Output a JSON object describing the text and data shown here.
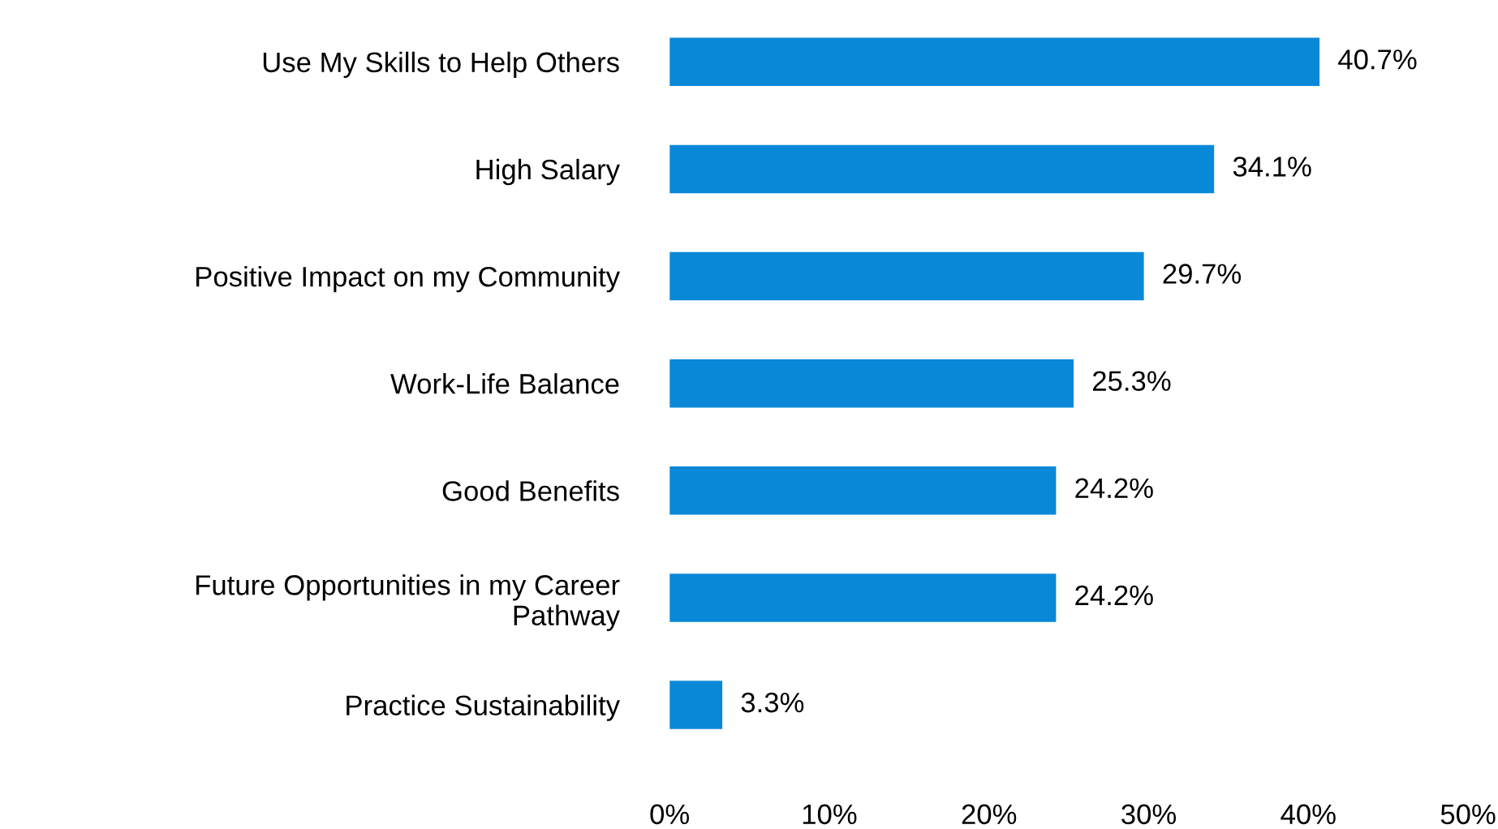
{
  "chart_data": {
    "type": "bar",
    "orientation": "horizontal",
    "categories": [
      "Use My Skills to Help Others",
      "High Salary",
      "Positive Impact on my Community",
      "Work-Life Balance",
      "Good Benefits",
      "Future Opportunities in my Career Pathway",
      "Practice Sustainability"
    ],
    "values": [
      40.7,
      34.1,
      29.7,
      25.3,
      24.2,
      24.2,
      3.3
    ],
    "value_labels": [
      "40.7%",
      "34.1%",
      "29.7%",
      "25.3%",
      "24.2%",
      "24.2%",
      "3.3%"
    ],
    "color": "#0a88d8",
    "xlim": [
      0,
      50
    ],
    "xticks": [
      {
        "value": 0,
        "label": "0%"
      },
      {
        "value": 10,
        "label": "10%"
      },
      {
        "value": 20,
        "label": "20%"
      },
      {
        "value": 30,
        "label": "30%"
      },
      {
        "value": 40,
        "label": "40%"
      },
      {
        "value": 50,
        "label": "50%"
      }
    ],
    "grid": false
  }
}
